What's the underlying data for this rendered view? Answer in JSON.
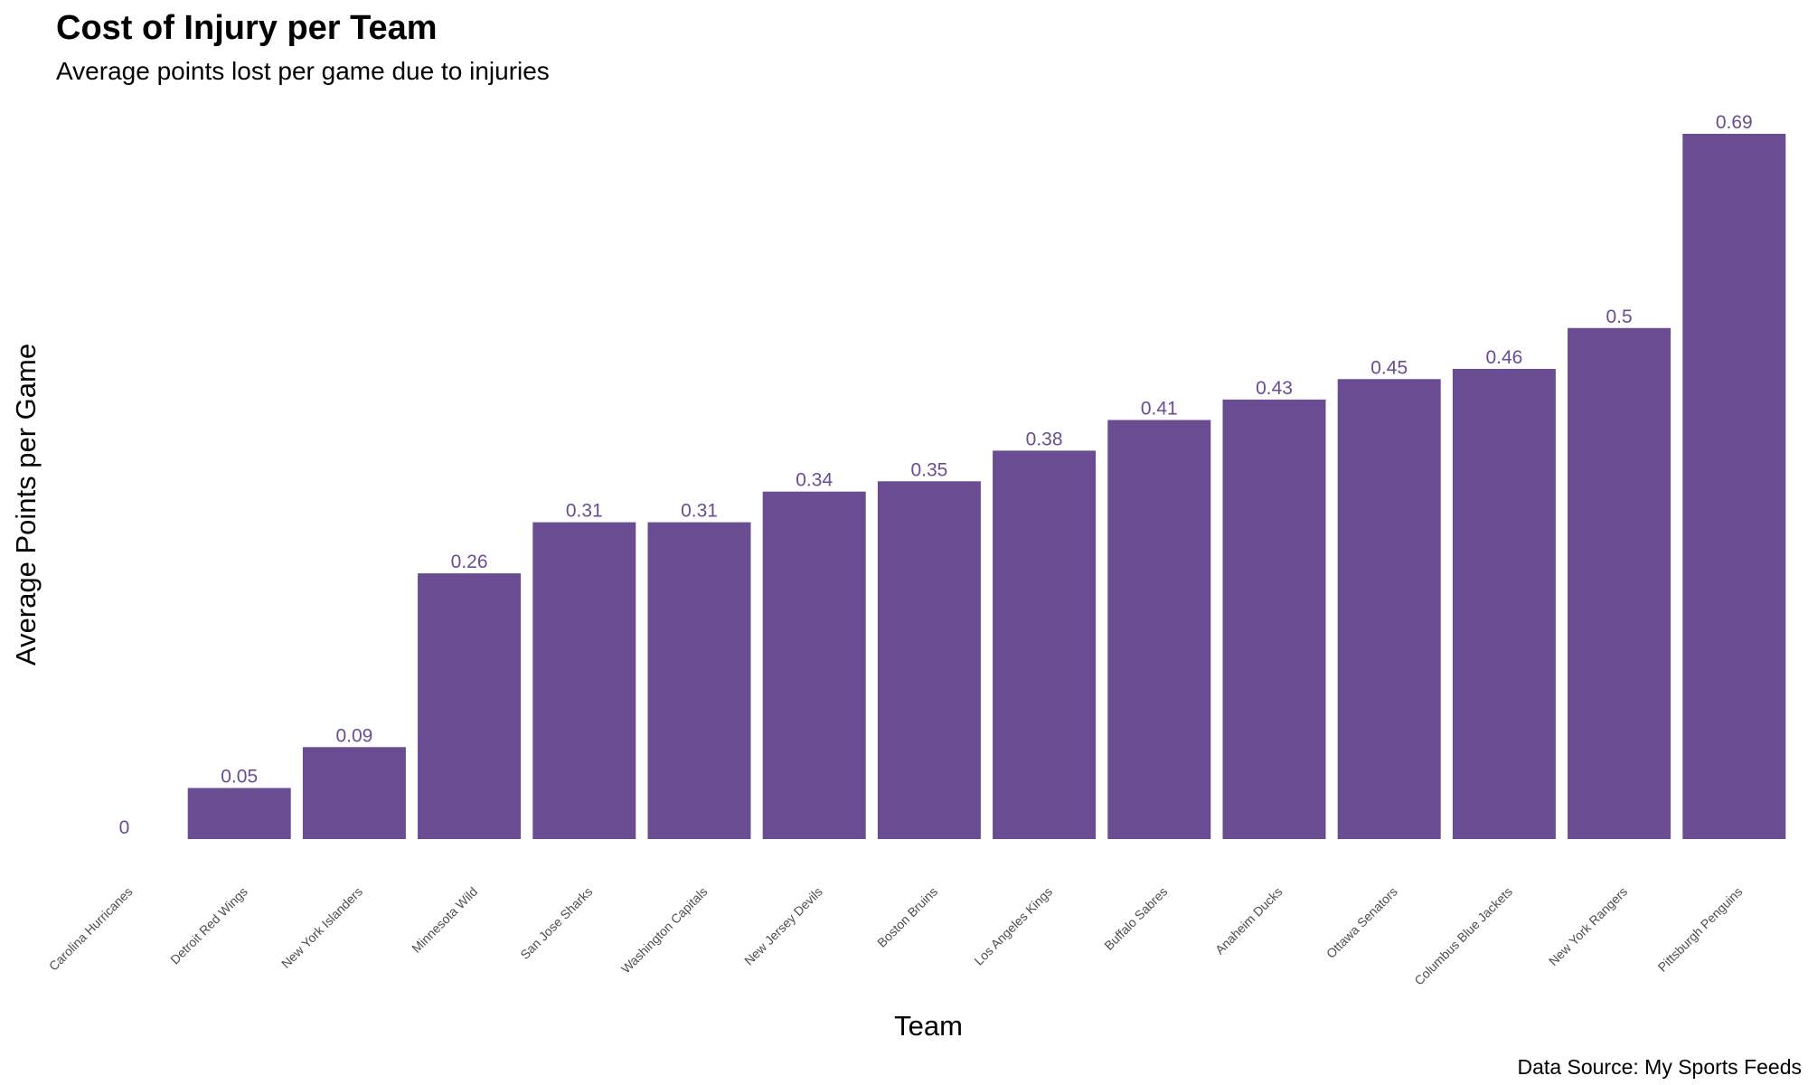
{
  "chart_data": {
    "type": "bar",
    "title": "Cost of Injury per Team",
    "subtitle": "Average points lost per game due to injuries",
    "xlabel": "Team",
    "ylabel": "Average Points per Game",
    "caption": "Data Source: My Sports Feeds",
    "categories": [
      "Carolina Hurricanes",
      "Detroit Red Wings",
      "New York Islanders",
      "Minnesota Wild",
      "San Jose Sharks",
      "Washington Capitals",
      "New Jersey Devils",
      "Boston Bruins",
      "Los Angeles Kings",
      "Buffalo Sabres",
      "Anaheim Ducks",
      "Ottawa Senators",
      "Columbus Blue Jackets",
      "New York Rangers",
      "Pittsburgh Penguins"
    ],
    "values": [
      0,
      0.05,
      0.09,
      0.26,
      0.31,
      0.31,
      0.34,
      0.35,
      0.38,
      0.41,
      0.43,
      0.45,
      0.46,
      0.5,
      0.69
    ],
    "value_labels": [
      "0",
      "0.05",
      "0.09",
      "0.26",
      "0.31",
      "0.31",
      "0.34",
      "0.35",
      "0.38",
      "0.41",
      "0.43",
      "0.45",
      "0.46",
      "0.5",
      "0.69"
    ],
    "ylim": [
      0,
      0.69
    ],
    "bar_color": "#6a4c93",
    "label_color": "#6a4c93",
    "grid": false,
    "legend": "none"
  }
}
